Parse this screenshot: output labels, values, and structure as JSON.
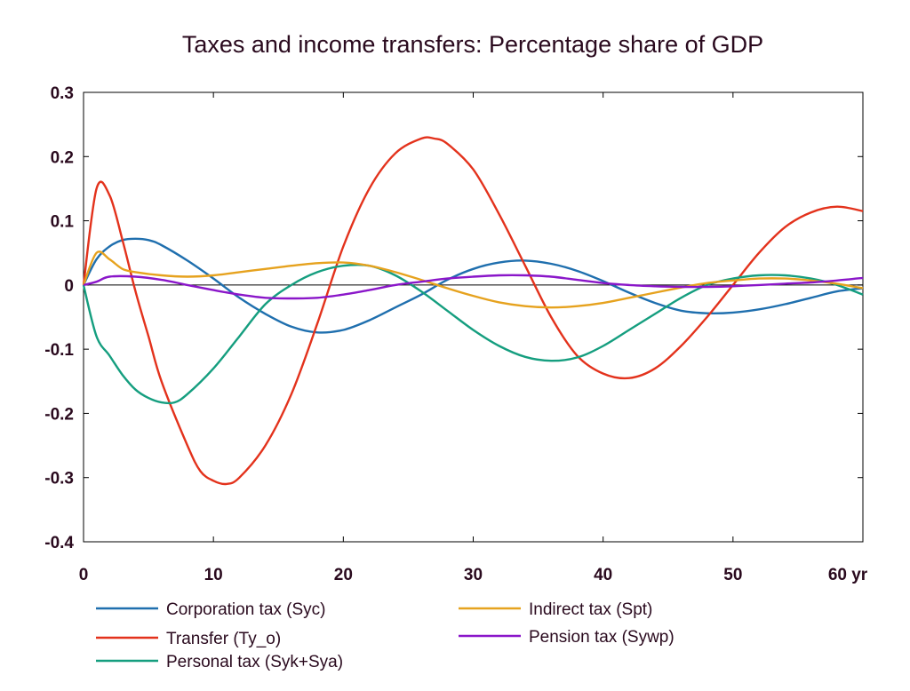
{
  "chart_data": {
    "type": "line",
    "title": "Taxes and income transfers: Percentage share of GDP",
    "xlabel": "",
    "ylabel": "",
    "x_unit_label": "yr",
    "xlim": [
      0,
      60
    ],
    "ylim": [
      -0.4,
      0.3
    ],
    "x_ticks": [
      0,
      10,
      20,
      30,
      40,
      50,
      60
    ],
    "x_tick_labels": [
      "0",
      "10",
      "20",
      "30",
      "40",
      "50",
      "60 yr"
    ],
    "y_ticks": [
      0.3,
      0.2,
      0.1,
      0,
      -0.1,
      -0.2,
      -0.3,
      -0.4
    ],
    "y_tick_labels": [
      "0.3",
      "0.2",
      "0.1",
      "0",
      "-0.1",
      "-0.2",
      "-0.3",
      "-0.4"
    ],
    "grid": false,
    "zero_line": true,
    "legend_position": "bottom",
    "series": [
      {
        "name": "Corporation tax (Syc)",
        "color": "#1f6fae",
        "points": [
          [
            0,
            0
          ],
          [
            1,
            0.04
          ],
          [
            2,
            0.06
          ],
          [
            3,
            0.07
          ],
          [
            4,
            0.072
          ],
          [
            5,
            0.07
          ],
          [
            6,
            0.062
          ],
          [
            8,
            0.038
          ],
          [
            10,
            0.01
          ],
          [
            12,
            -0.02
          ],
          [
            14,
            -0.045
          ],
          [
            16,
            -0.065
          ],
          [
            18,
            -0.074
          ],
          [
            20,
            -0.07
          ],
          [
            22,
            -0.055
          ],
          [
            24,
            -0.035
          ],
          [
            26,
            -0.015
          ],
          [
            28,
            0.008
          ],
          [
            30,
            0.025
          ],
          [
            32,
            0.035
          ],
          [
            34,
            0.038
          ],
          [
            36,
            0.033
          ],
          [
            38,
            0.022
          ],
          [
            40,
            0.006
          ],
          [
            42,
            -0.012
          ],
          [
            44,
            -0.028
          ],
          [
            46,
            -0.04
          ],
          [
            48,
            -0.044
          ],
          [
            50,
            -0.043
          ],
          [
            52,
            -0.038
          ],
          [
            54,
            -0.03
          ],
          [
            56,
            -0.02
          ],
          [
            58,
            -0.01
          ],
          [
            60,
            -0.005
          ]
        ]
      },
      {
        "name": "Transfer (Ty_o)",
        "color": "#e3321c",
        "points": [
          [
            0,
            0
          ],
          [
            1,
            0.15
          ],
          [
            2,
            0.14
          ],
          [
            3,
            0.07
          ],
          [
            4,
            -0.01
          ],
          [
            5,
            -0.08
          ],
          [
            6,
            -0.15
          ],
          [
            8,
            -0.25
          ],
          [
            9,
            -0.29
          ],
          [
            10,
            -0.305
          ],
          [
            11,
            -0.31
          ],
          [
            12,
            -0.3
          ],
          [
            14,
            -0.25
          ],
          [
            16,
            -0.17
          ],
          [
            18,
            -0.06
          ],
          [
            20,
            0.06
          ],
          [
            22,
            0.15
          ],
          [
            24,
            0.205
          ],
          [
            26,
            0.228
          ],
          [
            27,
            0.228
          ],
          [
            28,
            0.22
          ],
          [
            30,
            0.18
          ],
          [
            32,
            0.11
          ],
          [
            34,
            0.03
          ],
          [
            36,
            -0.05
          ],
          [
            38,
            -0.11
          ],
          [
            40,
            -0.138
          ],
          [
            42,
            -0.145
          ],
          [
            44,
            -0.13
          ],
          [
            46,
            -0.095
          ],
          [
            48,
            -0.05
          ],
          [
            50,
            0.0
          ],
          [
            52,
            0.05
          ],
          [
            54,
            0.09
          ],
          [
            56,
            0.113
          ],
          [
            58,
            0.122
          ],
          [
            60,
            0.115
          ]
        ]
      },
      {
        "name": "Personal tax (Syk+Sya)",
        "color": "#159e7f",
        "points": [
          [
            0,
            0
          ],
          [
            1,
            -0.08
          ],
          [
            2,
            -0.11
          ],
          [
            3,
            -0.14
          ],
          [
            4,
            -0.163
          ],
          [
            5,
            -0.176
          ],
          [
            6,
            -0.183
          ],
          [
            7,
            -0.183
          ],
          [
            8,
            -0.17
          ],
          [
            10,
            -0.13
          ],
          [
            12,
            -0.08
          ],
          [
            14,
            -0.03
          ],
          [
            16,
            0.0
          ],
          [
            18,
            0.02
          ],
          [
            20,
            0.03
          ],
          [
            22,
            0.03
          ],
          [
            24,
            0.015
          ],
          [
            26,
            -0.01
          ],
          [
            28,
            -0.04
          ],
          [
            30,
            -0.07
          ],
          [
            32,
            -0.095
          ],
          [
            34,
            -0.112
          ],
          [
            36,
            -0.118
          ],
          [
            38,
            -0.113
          ],
          [
            40,
            -0.095
          ],
          [
            42,
            -0.07
          ],
          [
            44,
            -0.045
          ],
          [
            46,
            -0.02
          ],
          [
            48,
            0.0
          ],
          [
            50,
            0.01
          ],
          [
            52,
            0.015
          ],
          [
            54,
            0.015
          ],
          [
            56,
            0.01
          ],
          [
            58,
            0.0
          ],
          [
            60,
            -0.015
          ]
        ]
      },
      {
        "name": "Indirect tax (Spt)",
        "color": "#e6a21e",
        "points": [
          [
            0,
            0
          ],
          [
            1,
            0.05
          ],
          [
            2,
            0.04
          ],
          [
            3,
            0.025
          ],
          [
            4,
            0.02
          ],
          [
            6,
            0.015
          ],
          [
            8,
            0.013
          ],
          [
            10,
            0.015
          ],
          [
            12,
            0.02
          ],
          [
            14,
            0.025
          ],
          [
            16,
            0.03
          ],
          [
            18,
            0.034
          ],
          [
            20,
            0.035
          ],
          [
            22,
            0.03
          ],
          [
            24,
            0.02
          ],
          [
            26,
            0.008
          ],
          [
            28,
            -0.005
          ],
          [
            30,
            -0.017
          ],
          [
            32,
            -0.027
          ],
          [
            34,
            -0.033
          ],
          [
            36,
            -0.035
          ],
          [
            38,
            -0.033
          ],
          [
            40,
            -0.028
          ],
          [
            42,
            -0.02
          ],
          [
            44,
            -0.012
          ],
          [
            46,
            -0.004
          ],
          [
            48,
            0.003
          ],
          [
            50,
            0.007
          ],
          [
            52,
            0.01
          ],
          [
            54,
            0.01
          ],
          [
            56,
            0.007
          ],
          [
            58,
            0.002
          ],
          [
            60,
            -0.005
          ]
        ]
      },
      {
        "name": "Pension tax (Sywp)",
        "color": "#8a16c9",
        "points": [
          [
            0,
            0
          ],
          [
            1,
            0.005
          ],
          [
            2,
            0.013
          ],
          [
            4,
            0.013
          ],
          [
            6,
            0.008
          ],
          [
            8,
            0.0
          ],
          [
            10,
            -0.008
          ],
          [
            12,
            -0.015
          ],
          [
            14,
            -0.02
          ],
          [
            16,
            -0.021
          ],
          [
            18,
            -0.02
          ],
          [
            20,
            -0.015
          ],
          [
            22,
            -0.008
          ],
          [
            24,
            0.0
          ],
          [
            26,
            0.005
          ],
          [
            28,
            0.01
          ],
          [
            30,
            0.013
          ],
          [
            32,
            0.015
          ],
          [
            34,
            0.015
          ],
          [
            36,
            0.013
          ],
          [
            38,
            0.008
          ],
          [
            40,
            0.003
          ],
          [
            42,
            0.0
          ],
          [
            44,
            -0.002
          ],
          [
            46,
            -0.003
          ],
          [
            48,
            -0.003
          ],
          [
            50,
            -0.002
          ],
          [
            52,
            0.0
          ],
          [
            54,
            0.002
          ],
          [
            56,
            0.004
          ],
          [
            58,
            0.007
          ],
          [
            60,
            0.011
          ]
        ]
      }
    ]
  }
}
